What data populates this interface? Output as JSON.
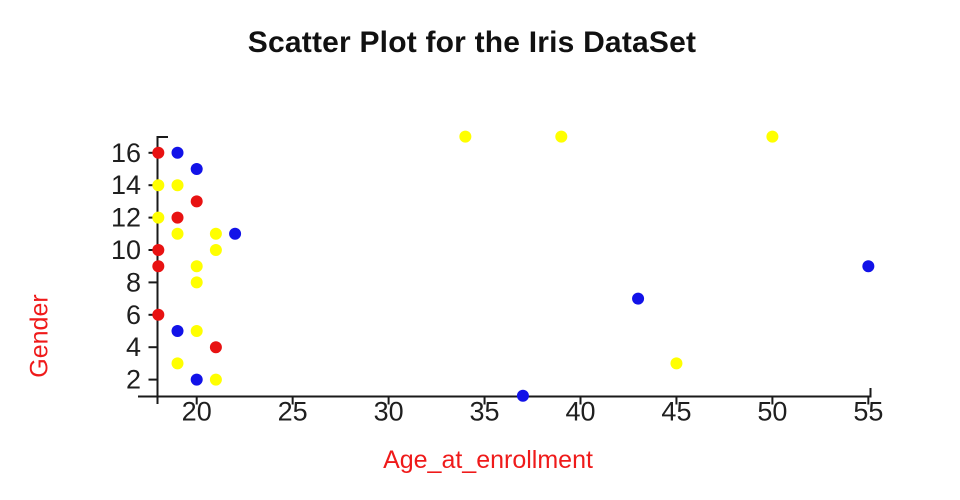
{
  "chart_data": {
    "type": "scatter",
    "title": "Scatter Plot for the Iris DataSet",
    "xlabel": "Age_at_enrollment",
    "ylabel": "Gender",
    "x_ticks": [
      20,
      25,
      30,
      35,
      40,
      45,
      50,
      55
    ],
    "y_ticks": [
      2,
      4,
      6,
      8,
      10,
      12,
      14,
      16
    ],
    "xlim": [
      17.9,
      55.1
    ],
    "ylim": [
      1,
      17
    ],
    "grid": false,
    "legend": "none",
    "series": [
      {
        "name": "red",
        "color": "#e81212",
        "points": [
          [
            18,
            16
          ],
          [
            20,
            13
          ],
          [
            19,
            12
          ],
          [
            18,
            10
          ],
          [
            18,
            9
          ],
          [
            18,
            6
          ],
          [
            21,
            4
          ]
        ]
      },
      {
        "name": "blue",
        "color": "#1212e8",
        "points": [
          [
            19,
            16
          ],
          [
            20,
            15
          ],
          [
            22,
            11
          ],
          [
            19,
            5
          ],
          [
            20,
            2
          ],
          [
            37,
            1
          ],
          [
            43,
            7
          ],
          [
            55,
            9
          ]
        ]
      },
      {
        "name": "yellow",
        "color": "#ffff00",
        "points": [
          [
            18,
            14
          ],
          [
            19,
            14
          ],
          [
            18,
            12
          ],
          [
            19,
            11
          ],
          [
            21,
            11
          ],
          [
            21,
            10
          ],
          [
            20,
            9
          ],
          [
            20,
            8
          ],
          [
            20,
            5
          ],
          [
            19,
            3
          ],
          [
            21,
            2
          ],
          [
            34,
            17
          ],
          [
            39,
            17
          ],
          [
            50,
            17
          ],
          [
            45,
            3
          ]
        ]
      }
    ],
    "colors": {
      "title": "#111111",
      "axis": "#1a1a1a",
      "tick_label": "#1f1f1f",
      "axis_label": "#ef1a1a",
      "background": "#ffffff"
    }
  }
}
